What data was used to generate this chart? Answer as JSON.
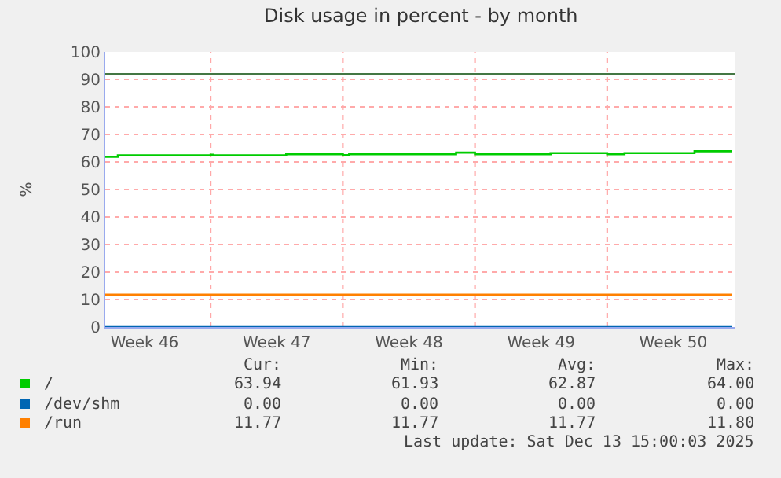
{
  "chart_data": {
    "type": "line",
    "title": "Disk usage in percent - by month",
    "ylabel": "%",
    "xlim": [
      "2025-11-10T10:00",
      "2025-12-13T19:00"
    ],
    "xticks": [
      {
        "value": "2025-11-12T12:00",
        "label": "Week 46"
      },
      {
        "value": "2025-11-19T12:00",
        "label": "Week 47"
      },
      {
        "value": "2025-11-26T12:00",
        "label": "Week 48"
      },
      {
        "value": "2025-12-03T12:00",
        "label": "Week 49"
      },
      {
        "value": "2025-12-10T12:00",
        "label": "Week 50"
      }
    ],
    "ylim": [
      0,
      100
    ],
    "yticks": [
      0,
      10,
      20,
      30,
      40,
      50,
      60,
      70,
      80,
      90,
      100
    ],
    "grid": "y",
    "legend": "bottom",
    "marker": "none",
    "line_style": "solid",
    "series": [
      {
        "name": "/",
        "type": "step",
        "color": "#00cc00",
        "x": [
          "2025-11-10T10:00",
          "2025-11-11T02:00",
          "2025-11-16T00:00",
          "2025-11-16T03:00",
          "2025-11-20T00:00",
          "2025-11-23T00:00",
          "2025-11-23T08:00",
          "2025-11-29T00:00",
          "2025-11-30T00:00",
          "2025-12-04T00:00",
          "2025-12-07T00:00",
          "2025-12-07T22:00",
          "2025-12-11T15:00",
          "2025-12-13T15:00"
        ],
        "values": [
          61.9,
          62.4,
          62.6,
          62.4,
          62.8,
          62.5,
          62.8,
          63.4,
          62.8,
          63.2,
          62.8,
          63.2,
          63.9,
          63.9
        ]
      },
      {
        "name": "/dev/shm",
        "type": "line",
        "color": "#0066b3",
        "x": [
          "2025-11-10T10:00",
          "2025-12-13T15:00"
        ],
        "values": [
          0,
          0
        ]
      },
      {
        "name": "/run",
        "type": "line",
        "color": "#ff8000",
        "x": [
          "2025-11-10T10:00",
          "2025-12-13T15:00"
        ],
        "values": [
          11.8,
          11.8
        ]
      }
    ],
    "ref_lines": [
      {
        "axis": "y",
        "value": 92,
        "color": "#447744",
        "line_style": "solid"
      },
      {
        "axis": "x",
        "value": "2025-11-16",
        "color": "#ff9999",
        "line_style": "dotted"
      },
      {
        "axis": "x",
        "value": "2025-11-23",
        "color": "#ff9999",
        "line_style": "dotted"
      },
      {
        "axis": "x",
        "value": "2025-11-30",
        "color": "#ff9999",
        "line_style": "dotted"
      },
      {
        "axis": "x",
        "value": "2025-12-07",
        "color": "#ff9999",
        "line_style": "dotted"
      }
    ],
    "annotations": [
      "Cur:",
      "Min:",
      "Avg:",
      "Max:",
      "63.94",
      "61.93",
      "62.87",
      "64.00",
      "0.00",
      "0.00",
      "0.00",
      "0.00",
      "11.77",
      "11.77",
      "11.77",
      "11.80",
      "Last update: Sat Dec 13 15:00:03 2025"
    ]
  }
}
